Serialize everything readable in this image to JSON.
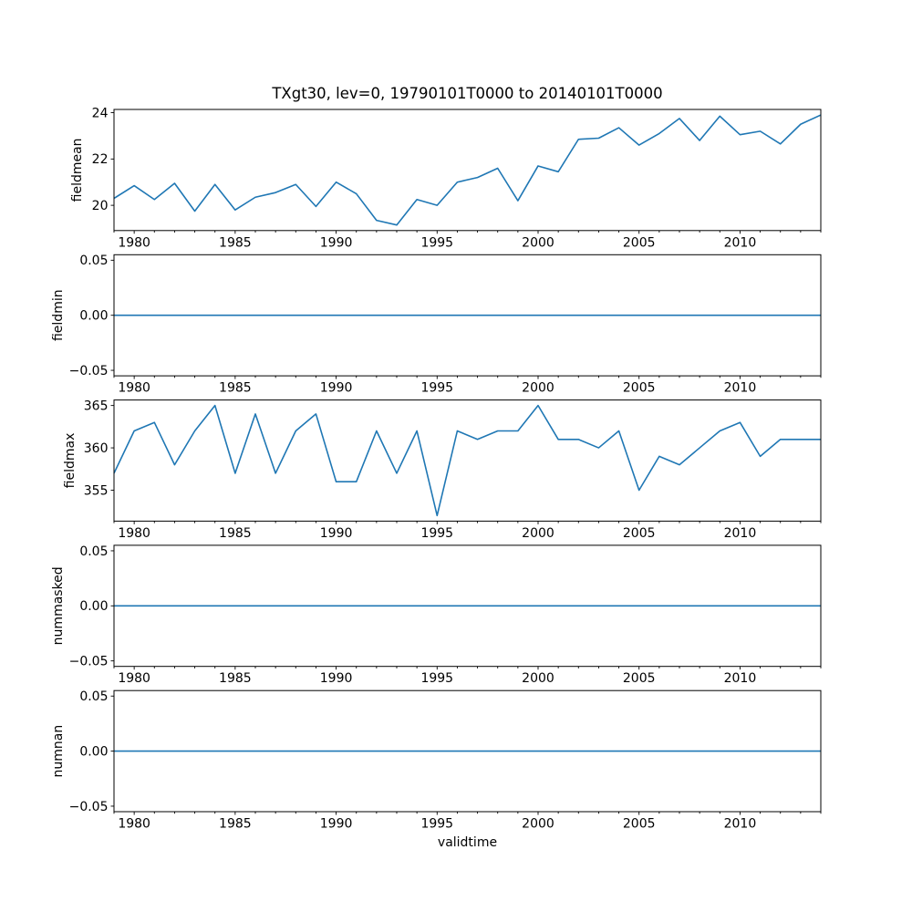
{
  "title": "TXgt30, lev=0, 19790101T0000 to 20140101T0000",
  "colors": {
    "line": "#1f77b4",
    "spine": "#000000",
    "text": "#000000",
    "background": "#ffffff"
  },
  "x_axis": {
    "label": "validtime",
    "range": [
      1979,
      2014
    ],
    "major_ticks": [
      {
        "v": 1980,
        "label": "1980"
      },
      {
        "v": 1985,
        "label": "1985"
      },
      {
        "v": 1990,
        "label": "1990"
      },
      {
        "v": 1995,
        "label": "1995"
      },
      {
        "v": 2000,
        "label": "2000"
      },
      {
        "v": 2005,
        "label": "2005"
      },
      {
        "v": 2010,
        "label": "2010"
      }
    ],
    "minor_tick_every": 1
  },
  "chart_data": [
    {
      "type": "line",
      "name": "fieldmean",
      "ylabel": "fieldmean",
      "line_color": "#1f77b4",
      "ylim": [
        18.91,
        24.14
      ],
      "yticks": [
        {
          "v": 24,
          "label": "24"
        },
        {
          "v": 22,
          "label": "22"
        },
        {
          "v": 20,
          "label": "20"
        }
      ],
      "x": [
        1979,
        1980,
        1981,
        1982,
        1983,
        1984,
        1985,
        1986,
        1987,
        1988,
        1989,
        1990,
        1991,
        1992,
        1993,
        1994,
        1995,
        1996,
        1997,
        1998,
        1999,
        2000,
        2001,
        2002,
        2003,
        2004,
        2005,
        2006,
        2007,
        2008,
        2009,
        2010,
        2011,
        2012,
        2013,
        2014
      ],
      "values": [
        20.3,
        20.85,
        20.25,
        20.95,
        19.75,
        20.9,
        19.8,
        20.35,
        20.55,
        20.9,
        19.95,
        21.0,
        20.5,
        19.35,
        19.15,
        20.25,
        20.0,
        21.0,
        21.2,
        21.6,
        20.2,
        21.7,
        21.45,
        22.85,
        22.9,
        23.35,
        22.6,
        23.1,
        23.75,
        22.8,
        23.85,
        23.05,
        23.2,
        22.65,
        23.5,
        23.9
      ]
    },
    {
      "type": "line",
      "name": "fieldmin",
      "ylabel": "fieldmin",
      "line_color": "#1f77b4",
      "ylim": [
        -0.055,
        0.055
      ],
      "yticks": [
        {
          "v": 0.05,
          "label": "0.05"
        },
        {
          "v": 0.0,
          "label": "0.00"
        },
        {
          "v": -0.05,
          "label": "−0.05"
        }
      ],
      "x": [
        1979,
        1980,
        1981,
        1982,
        1983,
        1984,
        1985,
        1986,
        1987,
        1988,
        1989,
        1990,
        1991,
        1992,
        1993,
        1994,
        1995,
        1996,
        1997,
        1998,
        1999,
        2000,
        2001,
        2002,
        2003,
        2004,
        2005,
        2006,
        2007,
        2008,
        2009,
        2010,
        2011,
        2012,
        2013,
        2014
      ],
      "values": [
        0,
        0,
        0,
        0,
        0,
        0,
        0,
        0,
        0,
        0,
        0,
        0,
        0,
        0,
        0,
        0,
        0,
        0,
        0,
        0,
        0,
        0,
        0,
        0,
        0,
        0,
        0,
        0,
        0,
        0,
        0,
        0,
        0,
        0,
        0,
        0
      ]
    },
    {
      "type": "line",
      "name": "fieldmax",
      "ylabel": "fieldmax",
      "line_color": "#1f77b4",
      "ylim": [
        351.35,
        365.65
      ],
      "yticks": [
        {
          "v": 365,
          "label": "365"
        },
        {
          "v": 360,
          "label": "360"
        },
        {
          "v": 355,
          "label": "355"
        }
      ],
      "x": [
        1979,
        1980,
        1981,
        1982,
        1983,
        1984,
        1985,
        1986,
        1987,
        1988,
        1989,
        1990,
        1991,
        1992,
        1993,
        1994,
        1995,
        1996,
        1997,
        1998,
        1999,
        2000,
        2001,
        2002,
        2003,
        2004,
        2005,
        2006,
        2007,
        2008,
        2009,
        2010,
        2011,
        2012,
        2013,
        2014
      ],
      "values": [
        357,
        362,
        363,
        358,
        362,
        365,
        357,
        364,
        357,
        362,
        364,
        356,
        356,
        362,
        357,
        362,
        352,
        362,
        361,
        362,
        362,
        365,
        361,
        361,
        360,
        362,
        355,
        359,
        358,
        360,
        362,
        363,
        359,
        361,
        361,
        361
      ]
    },
    {
      "type": "line",
      "name": "nummasked",
      "ylabel": "nummasked",
      "line_color": "#1f77b4",
      "ylim": [
        -0.055,
        0.055
      ],
      "yticks": [
        {
          "v": 0.05,
          "label": "0.05"
        },
        {
          "v": 0.0,
          "label": "0.00"
        },
        {
          "v": -0.05,
          "label": "−0.05"
        }
      ],
      "x": [
        1979,
        1980,
        1981,
        1982,
        1983,
        1984,
        1985,
        1986,
        1987,
        1988,
        1989,
        1990,
        1991,
        1992,
        1993,
        1994,
        1995,
        1996,
        1997,
        1998,
        1999,
        2000,
        2001,
        2002,
        2003,
        2004,
        2005,
        2006,
        2007,
        2008,
        2009,
        2010,
        2011,
        2012,
        2013,
        2014
      ],
      "values": [
        0,
        0,
        0,
        0,
        0,
        0,
        0,
        0,
        0,
        0,
        0,
        0,
        0,
        0,
        0,
        0,
        0,
        0,
        0,
        0,
        0,
        0,
        0,
        0,
        0,
        0,
        0,
        0,
        0,
        0,
        0,
        0,
        0,
        0,
        0,
        0
      ]
    },
    {
      "type": "line",
      "name": "numnan",
      "ylabel": "numnan",
      "line_color": "#1f77b4",
      "ylim": [
        -0.055,
        0.055
      ],
      "yticks": [
        {
          "v": 0.05,
          "label": "0.05"
        },
        {
          "v": 0.0,
          "label": "0.00"
        },
        {
          "v": -0.05,
          "label": "−0.05"
        }
      ],
      "x": [
        1979,
        1980,
        1981,
        1982,
        1983,
        1984,
        1985,
        1986,
        1987,
        1988,
        1989,
        1990,
        1991,
        1992,
        1993,
        1994,
        1995,
        1996,
        1997,
        1998,
        1999,
        2000,
        2001,
        2002,
        2003,
        2004,
        2005,
        2006,
        2007,
        2008,
        2009,
        2010,
        2011,
        2012,
        2013,
        2014
      ],
      "values": [
        0,
        0,
        0,
        0,
        0,
        0,
        0,
        0,
        0,
        0,
        0,
        0,
        0,
        0,
        0,
        0,
        0,
        0,
        0,
        0,
        0,
        0,
        0,
        0,
        0,
        0,
        0,
        0,
        0,
        0,
        0,
        0,
        0,
        0,
        0,
        0
      ]
    }
  ]
}
